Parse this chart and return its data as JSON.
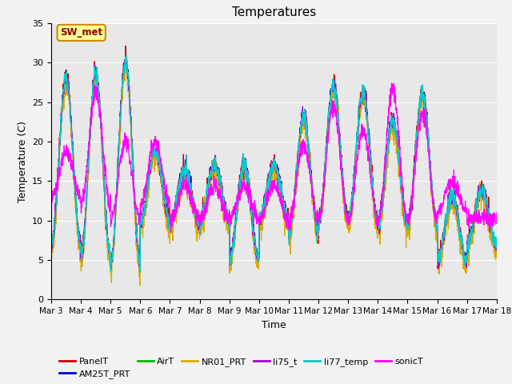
{
  "title": "Temperatures",
  "xlabel": "Time",
  "ylabel": "Temperature (C)",
  "ylim": [
    0,
    35
  ],
  "yticks": [
    0,
    5,
    10,
    15,
    20,
    25,
    30,
    35
  ],
  "date_labels": [
    "Mar 3",
    "Mar 4",
    "Mar 5",
    "Mar 6",
    "Mar 7",
    "Mar 8",
    "Mar 9",
    "Mar 10",
    "Mar 11",
    "Mar 12",
    "Mar 13",
    "Mar 14",
    "Mar 15",
    "Mar 16",
    "Mar 17",
    "Mar 18"
  ],
  "annotation": "SW_met",
  "series_colors": {
    "PanelT": "#cc0000",
    "AM25T_PRT": "#0000cc",
    "AirT": "#00bb00",
    "NR01_PRT": "#ddaa00",
    "li75_t": "#aa00cc",
    "li77_temp": "#00cccc",
    "sonicT": "#ff00ff"
  },
  "fig_facecolor": "#f2f2f2",
  "ax_facecolor": "#e8e8e8",
  "grid_color": "#ffffff"
}
